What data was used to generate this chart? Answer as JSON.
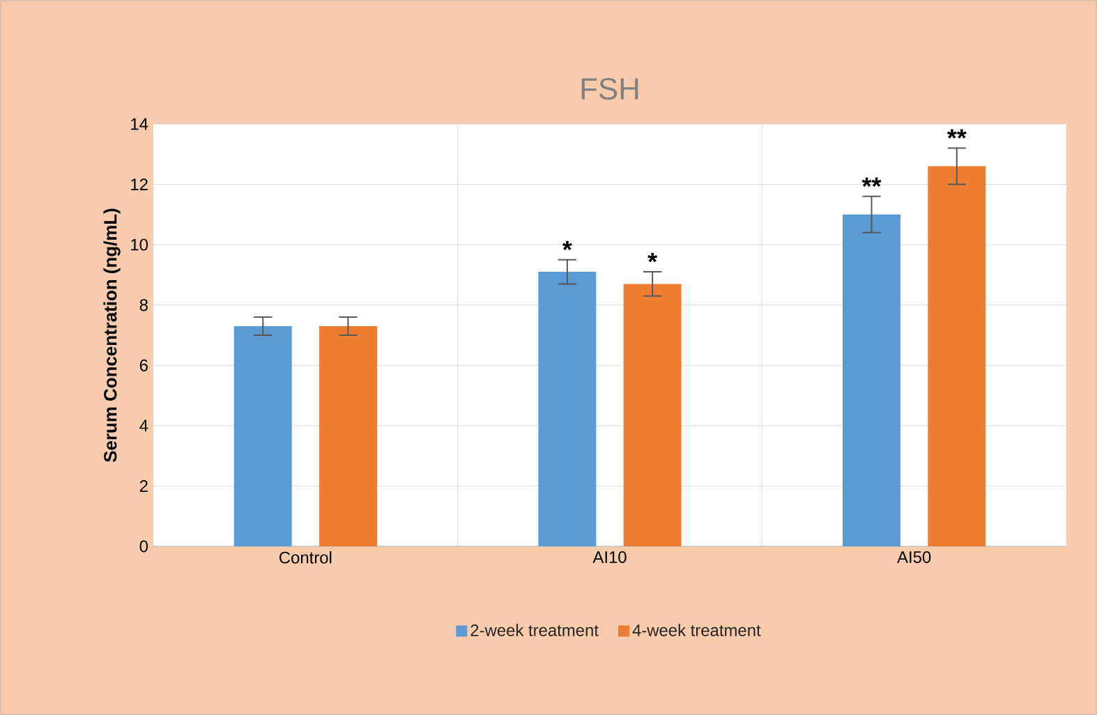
{
  "chart_data": {
    "type": "bar",
    "title": "FSH",
    "ylabel": "Serum Concentration (ng/mL)",
    "categories": [
      "Control",
      "AI10",
      "AI50"
    ],
    "series": [
      {
        "name": "2-week treatment",
        "color": "#5b9bd5",
        "values": [
          7.3,
          9.1,
          11.0
        ],
        "errors": [
          0.3,
          0.4,
          0.6
        ]
      },
      {
        "name": "4-week treatment",
        "color": "#ed7d31",
        "values": [
          7.3,
          8.7,
          12.6
        ],
        "errors": [
          0.3,
          0.4,
          0.6
        ]
      }
    ],
    "ylim": [
      0,
      14
    ],
    "yticks": [
      0,
      2,
      4,
      6,
      8,
      10,
      12,
      14
    ],
    "grid": true,
    "legend": "bottom",
    "annotations": [
      "*",
      "*",
      "**",
      "**"
    ]
  }
}
